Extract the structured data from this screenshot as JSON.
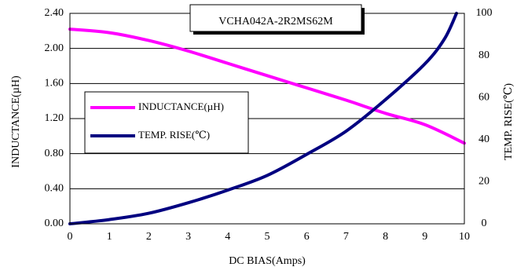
{
  "chart_data": {
    "type": "line",
    "title": "VCHA042A-2R2MS62M",
    "xlabel": "DC BIAS(Amps)",
    "ylabel": "INDUCTANCE(µH)",
    "y2label": "TEMP. RISE(℃)",
    "xlim": [
      0,
      10
    ],
    "ylim": [
      0,
      2.4
    ],
    "y2lim": [
      0,
      100
    ],
    "x_ticks": [
      "0",
      "1",
      "2",
      "3",
      "4",
      "5",
      "6",
      "7",
      "8",
      "9",
      "10"
    ],
    "y_ticks": [
      "0.00",
      "0.40",
      "0.80",
      "1.20",
      "1.60",
      "2.00",
      "2.40"
    ],
    "y2_ticks": [
      "0",
      "20",
      "40",
      "60",
      "80",
      "100"
    ],
    "grid": "horizontal",
    "legend_position": "left",
    "series": [
      {
        "name": "INDUCTANCE(µH)",
        "axis": "left",
        "color": "#ff00ff",
        "x": [
          0,
          1,
          2,
          3,
          4,
          5,
          6,
          7,
          8,
          9,
          10
        ],
        "values": [
          2.22,
          2.18,
          2.09,
          1.97,
          1.83,
          1.69,
          1.55,
          1.41,
          1.26,
          1.13,
          0.92
        ]
      },
      {
        "name": "TEMP. RISE(℃)",
        "axis": "right",
        "color": "#000080",
        "x": [
          0,
          1,
          2,
          3,
          4,
          5,
          6,
          7,
          8,
          9,
          9.5,
          9.8
        ],
        "values": [
          0,
          2,
          5,
          10,
          16,
          23,
          33,
          44,
          59,
          76,
          88,
          100
        ]
      }
    ]
  }
}
